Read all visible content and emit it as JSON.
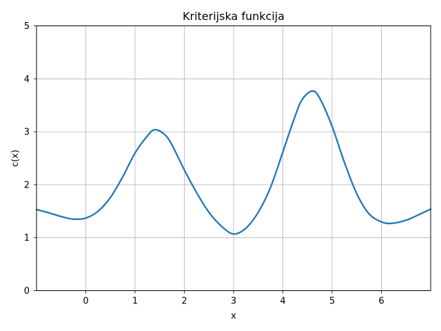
{
  "chart_data": {
    "type": "line",
    "title": "Kriterijska funkcija",
    "xlabel": "x",
    "ylabel": "c(x)",
    "xlim": [
      -1.0,
      7.0
    ],
    "ylim": [
      0,
      5
    ],
    "xticks": [
      0,
      1,
      2,
      3,
      4,
      5,
      6
    ],
    "yticks": [
      0,
      1,
      2,
      3,
      4,
      5
    ],
    "grid": true,
    "series": [
      {
        "color": "#1f77b4",
        "x": [
          -1.0,
          -0.75,
          -0.5,
          -0.25,
          0.0,
          0.25,
          0.5,
          0.75,
          1.0,
          1.25,
          1.4,
          1.6,
          1.75,
          2.0,
          2.25,
          2.5,
          2.75,
          3.0,
          3.25,
          3.5,
          3.75,
          4.0,
          4.25,
          4.4,
          4.6,
          4.75,
          5.0,
          5.25,
          5.5,
          5.75,
          6.0,
          6.2,
          6.5,
          6.75,
          7.0
        ],
        "y": [
          1.53,
          1.47,
          1.4,
          1.35,
          1.37,
          1.5,
          1.76,
          2.15,
          2.6,
          2.92,
          3.04,
          2.95,
          2.75,
          2.28,
          1.85,
          1.48,
          1.22,
          1.07,
          1.18,
          1.48,
          1.95,
          2.62,
          3.3,
          3.62,
          3.77,
          3.63,
          3.1,
          2.42,
          1.83,
          1.45,
          1.3,
          1.27,
          1.33,
          1.43,
          1.54
        ]
      }
    ]
  }
}
